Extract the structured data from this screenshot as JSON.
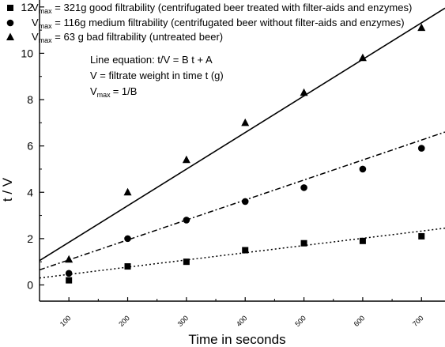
{
  "chart_data": {
    "type": "scatter",
    "xlabel": "Time in seconds",
    "ylabel": "t / V",
    "xlim": [
      50,
      740
    ],
    "ylim": [
      -0.7,
      12.3
    ],
    "xticks": [
      100,
      200,
      300,
      400,
      500,
      600,
      700
    ],
    "yticks": [
      0,
      2,
      4,
      6,
      8,
      10,
      12
    ],
    "grid": false,
    "legend_position": "top-left",
    "series": [
      {
        "name": "good filtrability (centrifugated beer treated with filter-aids and enzymes)",
        "vmax_label": "= 321g",
        "marker": "square",
        "line_style": "dotted",
        "x": [
          100,
          200,
          300,
          400,
          500,
          600,
          700
        ],
        "y": [
          0.2,
          0.8,
          1.0,
          1.5,
          1.8,
          1.9,
          2.1
        ],
        "fit": {
          "x": [
            50,
            740
          ],
          "y": [
            0.3,
            2.45
          ]
        }
      },
      {
        "name": "medium filtrability (centrifugated beer without filter-aids and enzymes)",
        "vmax_label": "= 116g",
        "marker": "circle",
        "line_style": "dashdot",
        "x": [
          100,
          200,
          300,
          400,
          500,
          600,
          700
        ],
        "y": [
          0.5,
          2.0,
          2.8,
          3.6,
          4.2,
          5.0,
          5.9
        ],
        "fit": {
          "x": [
            50,
            740
          ],
          "y": [
            0.65,
            6.6
          ]
        }
      },
      {
        "name": "bad filtrability (untreated beer)",
        "vmax_label": "= 63 g",
        "marker": "triangle",
        "line_style": "solid",
        "x": [
          100,
          200,
          300,
          400,
          500,
          600,
          700
        ],
        "y": [
          1.1,
          4.0,
          5.4,
          7.0,
          8.3,
          9.8,
          11.1
        ],
        "fit": {
          "x": [
            50,
            740
          ],
          "y": [
            1.05,
            11.95
          ]
        }
      }
    ],
    "annotations": [
      "Line equation: t/V = B t + A",
      "V = filtrate weight in time t (g)",
      "= 1/B"
    ],
    "vmax_symbol": "V",
    "vmax_subscript": "max"
  }
}
